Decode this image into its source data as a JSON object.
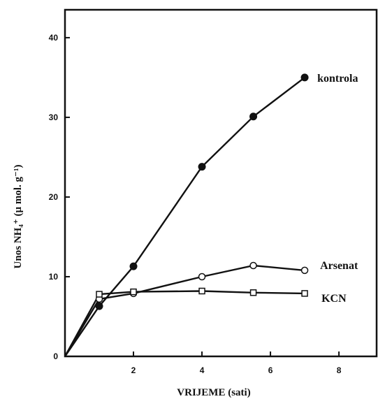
{
  "chart_data": {
    "type": "line",
    "xlabel": "VRIJEME (sati)",
    "ylabel": "Unos NH₄⁺ (µ mol. g⁻¹)",
    "xlim": [
      0,
      9.1
    ],
    "ylim": [
      0,
      43.5
    ],
    "x_ticks": [
      2,
      4,
      6,
      8
    ],
    "y_ticks": [
      0,
      10,
      20,
      30,
      40
    ],
    "grid": false,
    "legend": "labels at line ends",
    "series": [
      {
        "name": "kontrola",
        "marker": "filled-circle",
        "x": [
          0,
          1,
          2,
          4,
          5.5,
          7
        ],
        "y": [
          0,
          6.3,
          11.3,
          23.8,
          30.1,
          35.0
        ]
      },
      {
        "name": "Arsenat",
        "marker": "open-circle",
        "x": [
          0,
          1,
          2,
          4,
          5.5,
          7
        ],
        "y": [
          0,
          7.2,
          7.9,
          10.0,
          11.4,
          10.8
        ]
      },
      {
        "name": "KCN",
        "marker": "open-square",
        "x": [
          0,
          1,
          2,
          4,
          5.5,
          7
        ],
        "y": [
          0,
          7.8,
          8.1,
          8.2,
          8.0,
          7.9
        ]
      }
    ]
  }
}
